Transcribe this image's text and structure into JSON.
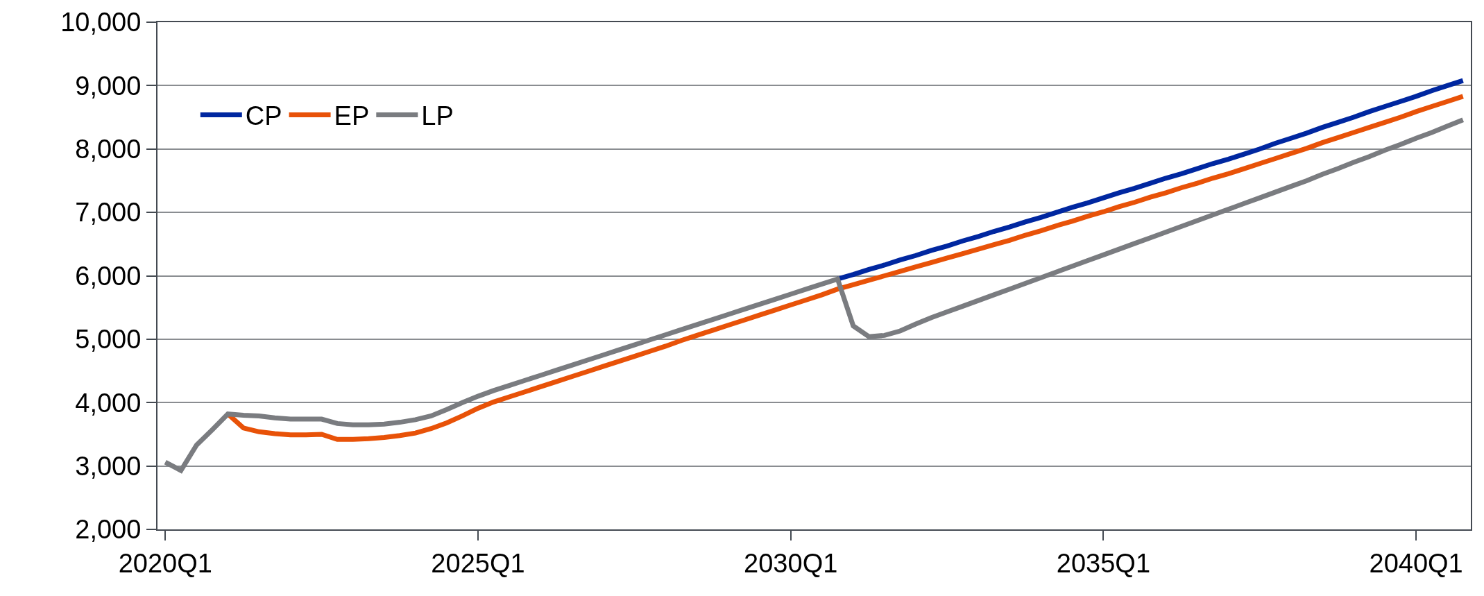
{
  "chart_data": {
    "type": "line",
    "categories": [
      "2020Q1",
      null,
      null,
      null,
      null,
      null,
      null,
      null,
      null,
      null,
      null,
      null,
      null,
      null,
      null,
      null,
      null,
      null,
      null,
      null,
      "2025Q1",
      null,
      null,
      null,
      null,
      null,
      null,
      null,
      null,
      null,
      null,
      null,
      null,
      null,
      null,
      null,
      null,
      null,
      null,
      null,
      "2030Q1",
      null,
      null,
      null,
      null,
      null,
      null,
      null,
      null,
      null,
      null,
      null,
      null,
      null,
      null,
      null,
      null,
      null,
      null,
      null,
      "2035Q1",
      null,
      null,
      null,
      null,
      null,
      null,
      null,
      null,
      null,
      null,
      null,
      null,
      null,
      null,
      null,
      null,
      null,
      null,
      null,
      "2040Q1",
      null,
      null,
      null
    ],
    "series": [
      {
        "name": "CP",
        "color": "#0027a0",
        "values": [
          null,
          null,
          null,
          null,
          null,
          null,
          null,
          null,
          null,
          null,
          null,
          null,
          null,
          null,
          null,
          null,
          null,
          null,
          null,
          null,
          null,
          null,
          null,
          null,
          null,
          null,
          null,
          null,
          null,
          null,
          null,
          null,
          null,
          null,
          null,
          null,
          null,
          null,
          null,
          null,
          null,
          null,
          null,
          5950,
          6020,
          6100,
          6170,
          6250,
          6320,
          6400,
          6470,
          6550,
          6620,
          6700,
          6770,
          6850,
          6920,
          7000,
          7080,
          7150,
          7230,
          7310,
          7380,
          7460,
          7540,
          7610,
          7690,
          7770,
          7840,
          7920,
          8000,
          8090,
          8170,
          8250,
          8340,
          8420,
          8500,
          8590,
          8670,
          8750,
          8830,
          8920,
          9000,
          9080
        ]
      },
      {
        "name": "EP",
        "color": "#e85208",
        "values": [
          null,
          null,
          null,
          null,
          3820,
          3600,
          3540,
          3510,
          3490,
          3490,
          3500,
          3420,
          3420,
          3430,
          3450,
          3480,
          3520,
          3590,
          3680,
          3790,
          3910,
          4010,
          4090,
          4170,
          4250,
          4330,
          4410,
          4490,
          4570,
          4650,
          4730,
          4810,
          4890,
          4980,
          5060,
          5140,
          5220,
          5300,
          5380,
          5460,
          5540,
          5620,
          5700,
          5790,
          5860,
          5930,
          6000,
          6070,
          6140,
          6210,
          6280,
          6350,
          6420,
          6490,
          6560,
          6640,
          6710,
          6790,
          6860,
          6940,
          7010,
          7090,
          7160,
          7240,
          7310,
          7390,
          7460,
          7540,
          7610,
          7690,
          7770,
          7850,
          7930,
          8010,
          8100,
          8180,
          8260,
          8340,
          8420,
          8500,
          8590,
          8670,
          8750,
          8830
        ]
      },
      {
        "name": "LP",
        "color": "#7a7c80",
        "values": [
          3060,
          2930,
          3330,
          3570,
          3820,
          3800,
          3790,
          3760,
          3740,
          3740,
          3740,
          3670,
          3650,
          3650,
          3660,
          3690,
          3730,
          3790,
          3890,
          4000,
          4100,
          4190,
          4270,
          4350,
          4430,
          4510,
          4590,
          4670,
          4750,
          4830,
          4910,
          4990,
          5070,
          5150,
          5230,
          5310,
          5390,
          5470,
          5550,
          5630,
          5710,
          5790,
          5870,
          5950,
          5210,
          5040,
          5060,
          5130,
          5240,
          5340,
          5430,
          5520,
          5610,
          5700,
          5790,
          5880,
          5970,
          6060,
          6150,
          6240,
          6330,
          6420,
          6510,
          6600,
          6690,
          6780,
          6870,
          6960,
          7050,
          7140,
          7230,
          7320,
          7410,
          7500,
          7600,
          7690,
          7790,
          7880,
          7980,
          8070,
          8170,
          8260,
          8360,
          8460
        ]
      }
    ],
    "ylim": [
      2000,
      10000
    ],
    "yticks": [
      {
        "value": 2000,
        "label": "2,000"
      },
      {
        "value": 3000,
        "label": "3,000"
      },
      {
        "value": 4000,
        "label": "4,000"
      },
      {
        "value": 5000,
        "label": "5,000"
      },
      {
        "value": 6000,
        "label": "6,000"
      },
      {
        "value": 7000,
        "label": "7,000"
      },
      {
        "value": 8000,
        "label": "8,000"
      },
      {
        "value": 9000,
        "label": "9,000"
      },
      {
        "value": 10000,
        "label": "10,000"
      }
    ],
    "grid": "y",
    "legend": "top left",
    "marker": "none",
    "line_style": "solid"
  }
}
